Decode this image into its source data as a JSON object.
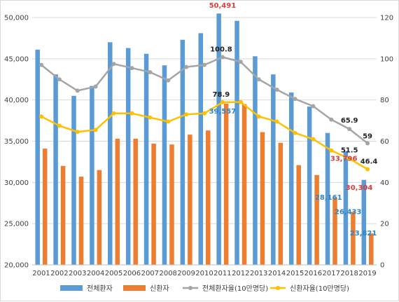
{
  "chart_data": {
    "type": "bar+line",
    "categories": [
      "2001",
      "2002",
      "2003",
      "2004",
      "2005",
      "2006",
      "2007",
      "2008",
      "2009",
      "2010",
      "2011",
      "2012",
      "2013",
      "2014",
      "2015",
      "2016",
      "2017",
      "2018",
      "2019"
    ],
    "y_left": {
      "ylim": [
        20000,
        50000
      ],
      "ticks": [
        "20,000",
        "25,000",
        "30,000",
        "35,000",
        "40,000",
        "45,000",
        "50,000"
      ]
    },
    "y_right": {
      "ylim": [
        0,
        120
      ],
      "ticks": [
        "0",
        "20",
        "40",
        "60",
        "80",
        "100",
        "120"
      ]
    },
    "series": [
      {
        "name": "전체환자",
        "type": "bar",
        "axis": "left",
        "color": "#5b9bd5",
        "values": [
          46100,
          43100,
          40500,
          41700,
          47000,
          46300,
          45600,
          44200,
          47300,
          48100,
          50491,
          49600,
          45300,
          43100,
          40900,
          39200,
          36000,
          33796,
          30304
        ]
      },
      {
        "name": "신환자",
        "type": "bar",
        "axis": "left",
        "color": "#ed7d31",
        "values": [
          34100,
          32000,
          30700,
          31500,
          35300,
          35300,
          34700,
          34600,
          35800,
          36300,
          39557,
          39500,
          36100,
          34800,
          32100,
          30900,
          28161,
          26433,
          23821
        ]
      },
      {
        "name": "전체환자율(10만명당)",
        "type": "line",
        "axis": "right",
        "color": "#a5a5a5",
        "values": [
          97,
          90,
          84.5,
          86.5,
          97.5,
          95.5,
          93.5,
          89.5,
          96,
          97,
          100.8,
          98.5,
          90,
          85,
          80.5,
          77,
          70.5,
          65.9,
          59
        ]
      },
      {
        "name": "신환자율(10만명당)",
        "type": "line",
        "axis": "right",
        "color": "#ffc000",
        "values": [
          72,
          67.5,
          64.5,
          65.5,
          73.5,
          73.5,
          71.5,
          69.5,
          73,
          73.5,
          78.9,
          79,
          72,
          69.5,
          64,
          61,
          55.5,
          51.5,
          46.4
        ]
      }
    ],
    "annotations": [
      {
        "text": "50,491",
        "series": 0,
        "index": 10,
        "color": "#e03a3a"
      },
      {
        "text": "39,557",
        "series": 1,
        "index": 10,
        "color": "#2e86c8"
      },
      {
        "text": "100.8",
        "series": 2,
        "index": 10,
        "color": "#222222"
      },
      {
        "text": "78.9",
        "series": 3,
        "index": 10,
        "color": "#222222"
      },
      {
        "text": "65.9",
        "series": 2,
        "index": 17,
        "color": "#222222"
      },
      {
        "text": "51.5",
        "series": 3,
        "index": 17,
        "color": "#222222"
      },
      {
        "text": "33,796",
        "series": 0,
        "index": 17,
        "color": "#e03a3a"
      },
      {
        "text": "28,161",
        "series": 1,
        "index": 16,
        "color": "#2e86c8"
      },
      {
        "text": "26,433",
        "series": 1,
        "index": 17,
        "color": "#2e86c8"
      },
      {
        "text": "59",
        "series": 2,
        "index": 18,
        "color": "#222222"
      },
      {
        "text": "46.4",
        "series": 3,
        "index": 18,
        "color": "#222222"
      },
      {
        "text": "30,304",
        "series": 0,
        "index": 18,
        "color": "#e03a3a"
      },
      {
        "text": "23,821",
        "series": 1,
        "index": 18,
        "color": "#2e86c8"
      }
    ],
    "legend_position": "bottom",
    "grid": true
  }
}
